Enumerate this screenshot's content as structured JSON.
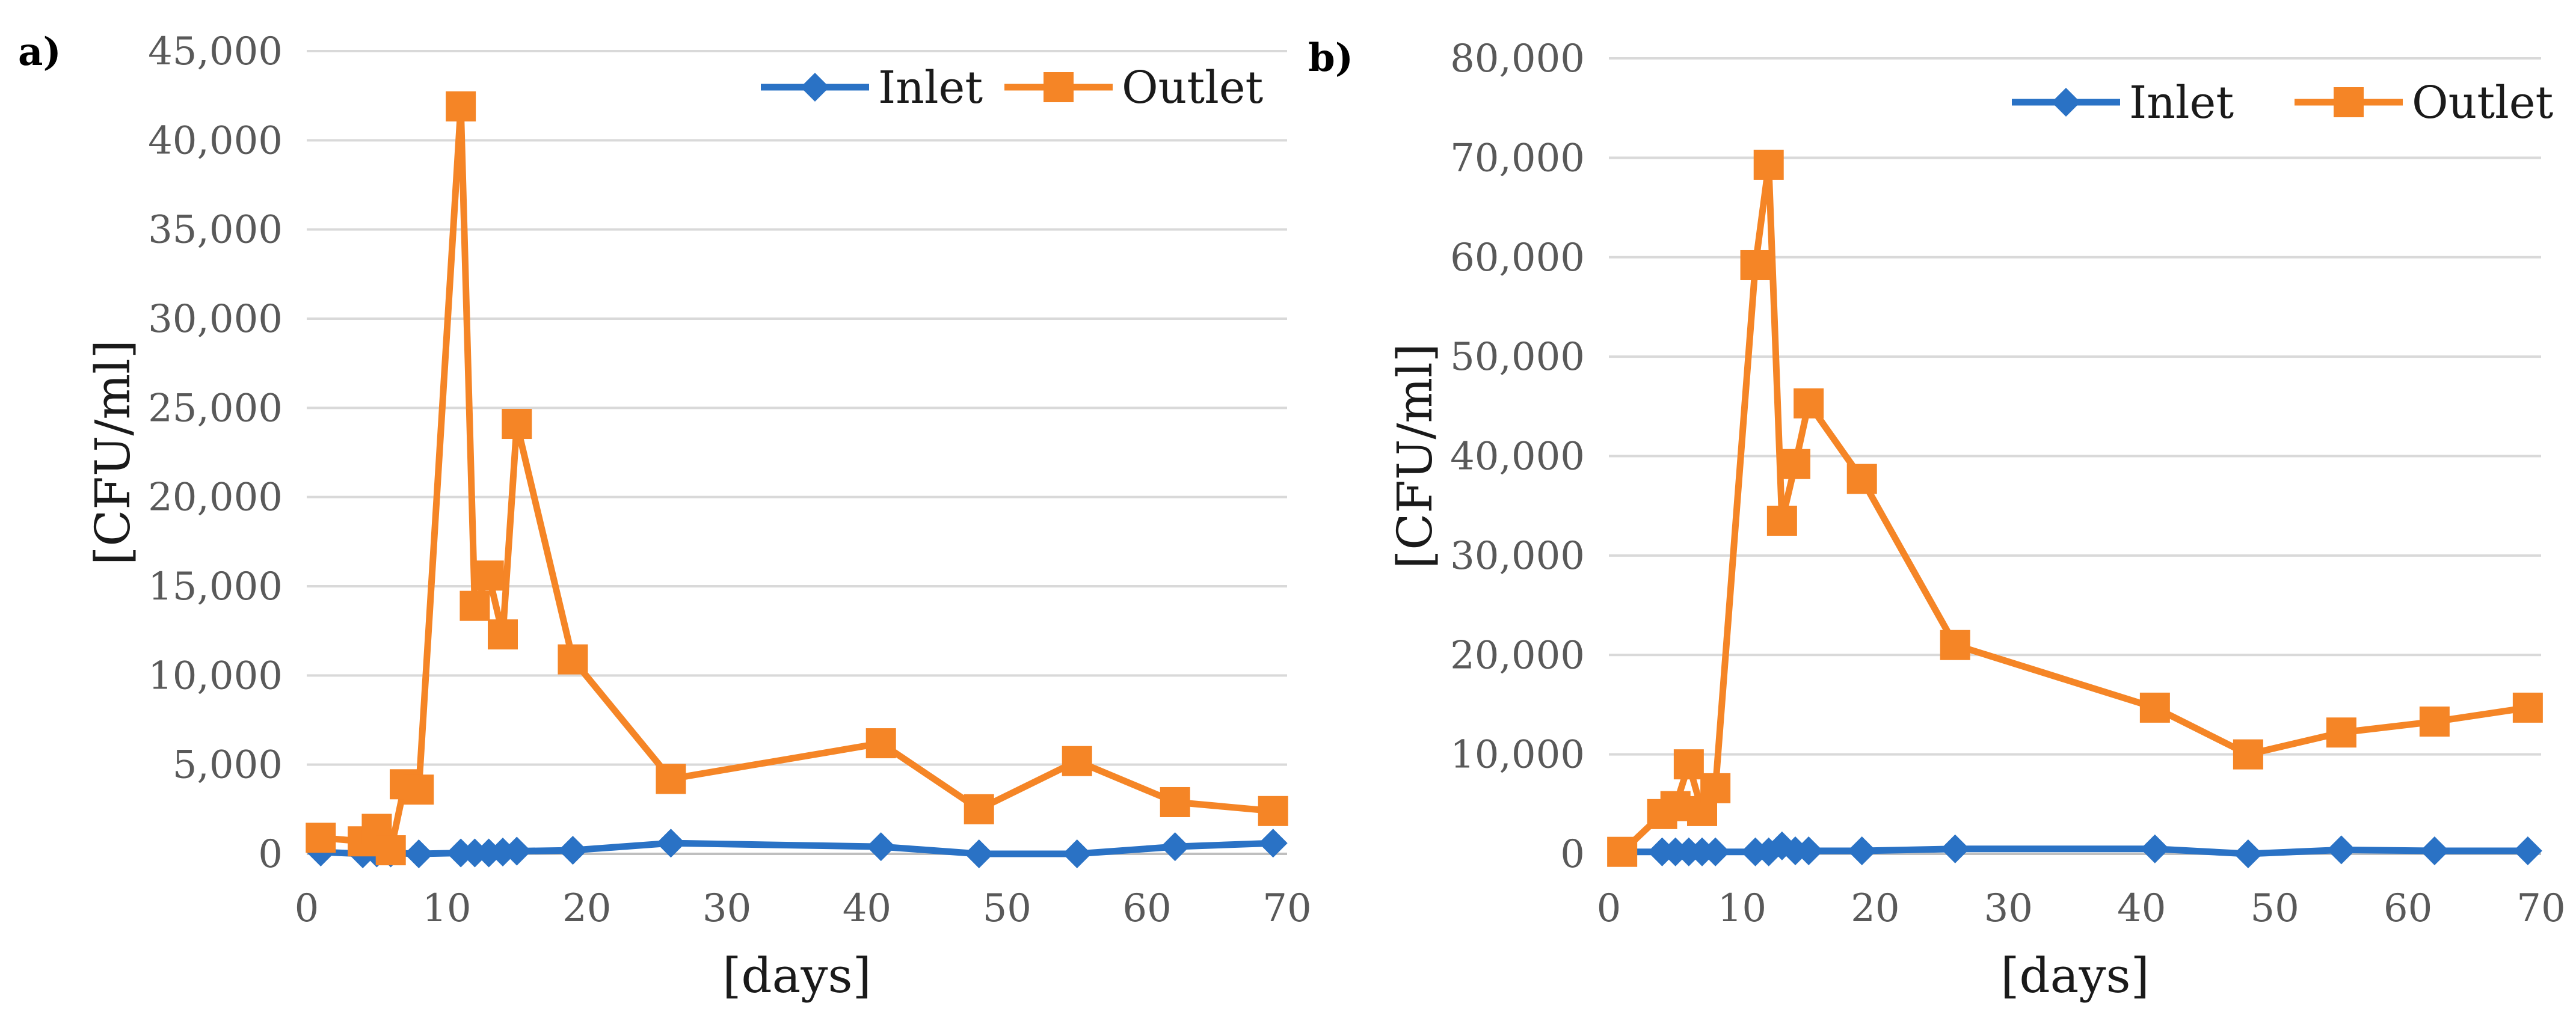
{
  "chart_data": [
    {
      "type": "line",
      "panel_label": "a)",
      "xlabel": "[days]",
      "ylabel": "[CFU/ml]",
      "xlim": [
        0,
        70
      ],
      "ylim": [
        0,
        45000
      ],
      "x_ticks": [
        0,
        10,
        20,
        30,
        40,
        50,
        60,
        70
      ],
      "y_ticks": [
        0,
        5000,
        10000,
        15000,
        20000,
        25000,
        30000,
        35000,
        40000,
        45000
      ],
      "grid": true,
      "legend_position": "top-right",
      "series": [
        {
          "name": "Inlet",
          "color": "#2a72c5",
          "marker": "diamond",
          "points": [
            [
              1,
              100
            ],
            [
              4,
              0
            ],
            [
              5,
              50
            ],
            [
              6,
              50
            ],
            [
              8,
              0
            ],
            [
              11,
              50
            ],
            [
              12,
              50
            ],
            [
              13,
              50
            ],
            [
              14,
              100
            ],
            [
              15,
              150
            ],
            [
              19,
              200
            ],
            [
              26,
              600
            ],
            [
              41,
              400
            ],
            [
              48,
              0
            ],
            [
              55,
              0
            ],
            [
              62,
              400
            ],
            [
              69,
              600
            ]
          ]
        },
        {
          "name": "Outlet",
          "color": "#f58526",
          "marker": "square",
          "points": [
            [
              1,
              900
            ],
            [
              4,
              700
            ],
            [
              5,
              1400
            ],
            [
              6,
              200
            ],
            [
              7,
              3900
            ],
            [
              8,
              3600
            ],
            [
              11,
              41900
            ],
            [
              12,
              13900
            ],
            [
              13,
              15600
            ],
            [
              14,
              12300
            ],
            [
              15,
              24100
            ],
            [
              19,
              10900
            ],
            [
              26,
              4200
            ],
            [
              41,
              6200
            ],
            [
              48,
              2500
            ],
            [
              55,
              5200
            ],
            [
              62,
              2900
            ],
            [
              69,
              2400
            ]
          ]
        }
      ]
    },
    {
      "type": "line",
      "panel_label": "b)",
      "xlabel": "[days]",
      "ylabel": "[CFU/ml]",
      "xlim": [
        0,
        70
      ],
      "ylim": [
        0,
        80000
      ],
      "x_ticks": [
        0,
        10,
        20,
        30,
        40,
        50,
        60,
        70
      ],
      "y_ticks": [
        0,
        10000,
        20000,
        30000,
        40000,
        50000,
        60000,
        70000,
        80000
      ],
      "grid": true,
      "legend_position": "top-right",
      "series": [
        {
          "name": "Inlet",
          "color": "#2a72c5",
          "marker": "diamond",
          "points": [
            [
              1,
              200
            ],
            [
              4,
              200
            ],
            [
              5,
              200
            ],
            [
              6,
              200
            ],
            [
              7,
              200
            ],
            [
              8,
              200
            ],
            [
              11,
              200
            ],
            [
              12,
              200
            ],
            [
              13,
              800
            ],
            [
              14,
              300
            ],
            [
              15,
              300
            ],
            [
              19,
              300
            ],
            [
              26,
              500
            ],
            [
              41,
              500
            ],
            [
              48,
              0
            ],
            [
              55,
              400
            ],
            [
              62,
              300
            ],
            [
              69,
              300
            ]
          ]
        },
        {
          "name": "Outlet",
          "color": "#f58526",
          "marker": "square",
          "points": [
            [
              1,
              200
            ],
            [
              4,
              4000
            ],
            [
              5,
              4800
            ],
            [
              6,
              9000
            ],
            [
              7,
              4300
            ],
            [
              8,
              6600
            ],
            [
              11,
              59200
            ],
            [
              12,
              69300
            ],
            [
              13,
              33500
            ],
            [
              14,
              39200
            ],
            [
              15,
              45300
            ],
            [
              19,
              37700
            ],
            [
              26,
              21000
            ],
            [
              41,
              14700
            ],
            [
              48,
              10000
            ],
            [
              55,
              12200
            ],
            [
              62,
              13300
            ],
            [
              69,
              14700
            ]
          ]
        }
      ]
    }
  ]
}
